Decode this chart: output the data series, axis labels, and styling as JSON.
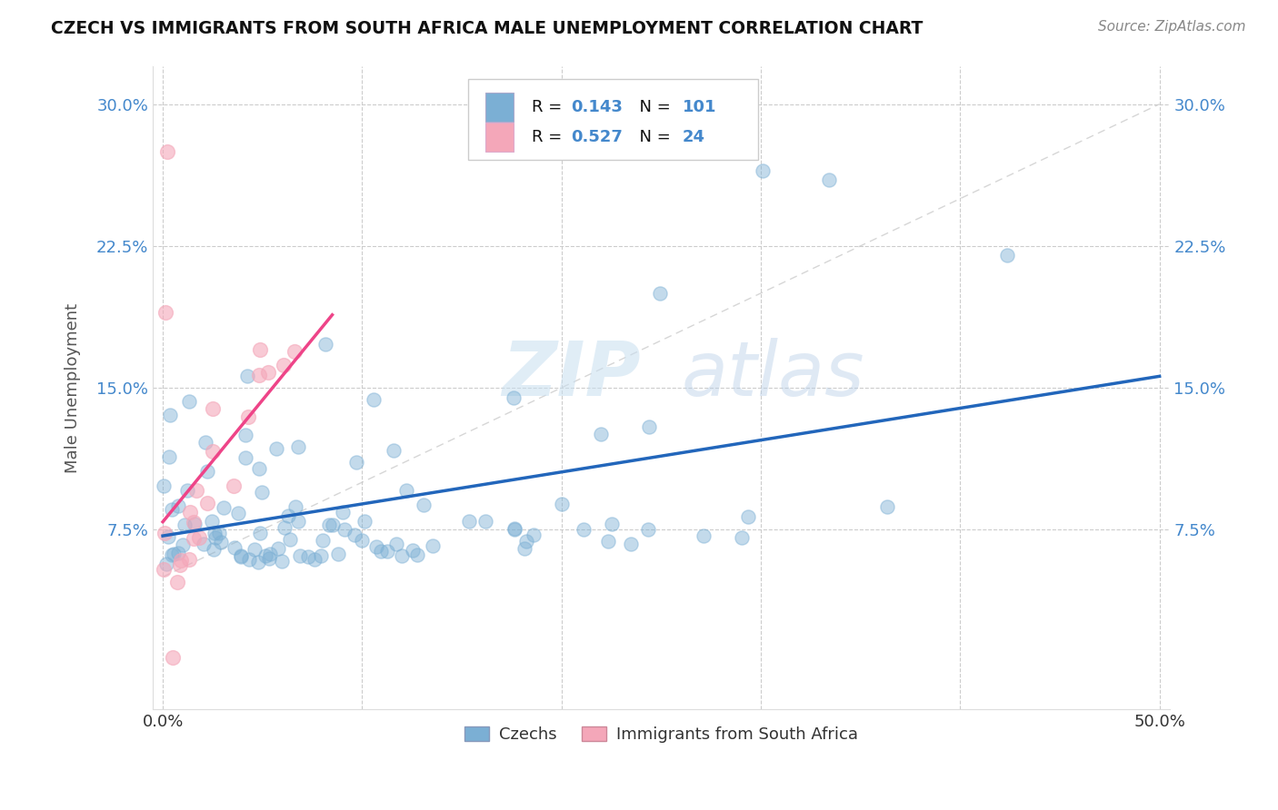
{
  "title": "CZECH VS IMMIGRANTS FROM SOUTH AFRICA MALE UNEMPLOYMENT CORRELATION CHART",
  "source": "Source: ZipAtlas.com",
  "ylabel": "Male Unemployment",
  "xlim": [
    -0.005,
    0.505
  ],
  "ylim": [
    -0.02,
    0.32
  ],
  "xticks": [
    0.0,
    0.1,
    0.2,
    0.3,
    0.4,
    0.5
  ],
  "xticklabels": [
    "0.0%",
    "",
    "",
    "",
    "",
    "50.0%"
  ],
  "yticks_left": [
    0.075,
    0.15,
    0.225,
    0.3
  ],
  "yticks_right": [
    0.075,
    0.15,
    0.225,
    0.3
  ],
  "yticklabels": [
    "7.5%",
    "15.0%",
    "22.5%",
    "30.0%"
  ],
  "czech_R": 0.143,
  "czech_N": 101,
  "sa_R": 0.527,
  "sa_N": 24,
  "czech_color": "#7BAFD4",
  "sa_color": "#F4A7B9",
  "trendline_czech_color": "#2266BB",
  "trendline_sa_color": "#EE4488",
  "watermark_zip": "ZIP",
  "watermark_atlas": "atlas",
  "legend_czechs": "Czechs",
  "legend_sa": "Immigrants from South Africa",
  "background_color": "#ffffff",
  "grid_color": "#cccccc",
  "tick_color": "#4488CC",
  "title_color": "#111111",
  "source_color": "#888888"
}
